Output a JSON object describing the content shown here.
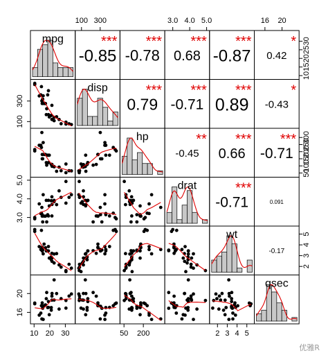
{
  "chart_data": {
    "type": "scatter-matrix",
    "colors": {
      "points": "#000000",
      "smooth": "#e00000",
      "hist_fill": "#c8c8c8",
      "density": "#e00000",
      "stars": "#e00000",
      "text": "#000000"
    },
    "variables": [
      "mpg",
      "disp",
      "hp",
      "drat",
      "wt",
      "qsec"
    ],
    "axes": {
      "top": [
        {
          "var": "disp",
          "ticks": [
            "100",
            "300"
          ],
          "values": [
            100,
            300
          ]
        },
        {
          "var": "drat",
          "ticks": [
            "3.0",
            "4.0",
            "5.0"
          ],
          "values": [
            3.0,
            4.0,
            5.0
          ]
        },
        {
          "var": "qsec",
          "ticks": [
            "16",
            "20"
          ],
          "values": [
            16,
            20
          ]
        }
      ],
      "bottom": [
        {
          "var": "mpg",
          "ticks": [
            "10",
            "20",
            "30"
          ],
          "values": [
            10,
            20,
            30
          ]
        },
        {
          "var": "hp",
          "ticks": [
            "50",
            "200"
          ],
          "values": [
            50,
            200
          ]
        },
        {
          "var": "wt",
          "ticks": [
            "2",
            "3",
            "4",
            "5"
          ],
          "values": [
            2,
            3,
            4,
            5
          ]
        }
      ],
      "left": [
        {
          "var": "disp",
          "ticks": [
            "100",
            "300"
          ],
          "values": [
            100,
            300
          ]
        },
        {
          "var": "drat",
          "ticks": [
            "3.0",
            "4.0",
            "5.0"
          ],
          "values": [
            3.0,
            4.0,
            5.0
          ]
        },
        {
          "var": "qsec",
          "ticks": [
            "16",
            "20"
          ],
          "values": [
            16,
            20
          ]
        }
      ],
      "right": [
        {
          "var": "mpg",
          "ticks": [
            "10",
            "15",
            "20",
            "25",
            "30"
          ],
          "values": [
            10,
            15,
            20,
            25,
            30
          ]
        },
        {
          "var": "hp",
          "ticks": [
            "50",
            "100",
            "150",
            "200",
            "250",
            "300"
          ],
          "values": [
            50,
            100,
            150,
            200,
            250,
            300
          ]
        },
        {
          "var": "wt",
          "ticks": [
            "2",
            "3",
            "4",
            "5"
          ],
          "values": [
            2,
            3,
            4,
            5
          ]
        }
      ]
    },
    "correlations": [
      {
        "row": 0,
        "col": 1,
        "r": "-0.85",
        "stars": "***"
      },
      {
        "row": 0,
        "col": 2,
        "r": "-0.78",
        "stars": "***"
      },
      {
        "row": 0,
        "col": 3,
        "r": "0.68",
        "stars": "***"
      },
      {
        "row": 0,
        "col": 4,
        "r": "-0.87",
        "stars": "***"
      },
      {
        "row": 0,
        "col": 5,
        "r": "0.42",
        "stars": "*"
      },
      {
        "row": 1,
        "col": 2,
        "r": "0.79",
        "stars": "***"
      },
      {
        "row": 1,
        "col": 3,
        "r": "-0.71",
        "stars": "***"
      },
      {
        "row": 1,
        "col": 4,
        "r": "0.89",
        "stars": "***"
      },
      {
        "row": 1,
        "col": 5,
        "r": "-0.43",
        "stars": "*"
      },
      {
        "row": 2,
        "col": 3,
        "r": "-0.45",
        "stars": "**"
      },
      {
        "row": 2,
        "col": 4,
        "r": "0.66",
        "stars": "***"
      },
      {
        "row": 2,
        "col": 5,
        "r": "-0.71",
        "stars": "***"
      },
      {
        "row": 3,
        "col": 4,
        "r": "-0.71",
        "stars": "***"
      },
      {
        "row": 3,
        "col": 5,
        "r": "0.091",
        "stars": ""
      },
      {
        "row": 4,
        "col": 5,
        "r": "-0.17",
        "stars": ""
      }
    ],
    "data": {
      "mpg": [
        21.0,
        21.0,
        22.8,
        21.4,
        18.7,
        18.1,
        14.3,
        24.4,
        22.8,
        19.2,
        17.8,
        16.4,
        17.3,
        15.2,
        10.4,
        10.4,
        14.7,
        32.4,
        30.4,
        33.9,
        21.5,
        15.5,
        15.2,
        13.3,
        19.2,
        27.3,
        26.0,
        30.4,
        15.8,
        19.7,
        15.0,
        21.4
      ],
      "disp": [
        160,
        160,
        108,
        258,
        360,
        225,
        360,
        146.7,
        140.8,
        167.6,
        167.6,
        275.8,
        275.8,
        275.8,
        472,
        460,
        440,
        78.7,
        75.7,
        71.1,
        120.1,
        318,
        304,
        350,
        400,
        79,
        120.3,
        95.1,
        351,
        145,
        301,
        121
      ],
      "hp": [
        110,
        110,
        93,
        110,
        175,
        105,
        245,
        62,
        95,
        123,
        123,
        180,
        180,
        180,
        205,
        215,
        230,
        66,
        52,
        65,
        97,
        150,
        150,
        245,
        175,
        66,
        91,
        113,
        264,
        175,
        335,
        109
      ],
      "drat": [
        3.9,
        3.9,
        3.85,
        3.08,
        3.15,
        2.76,
        3.21,
        3.69,
        3.92,
        3.92,
        3.92,
        3.07,
        3.07,
        3.07,
        2.93,
        3.0,
        3.23,
        4.08,
        4.93,
        4.22,
        3.7,
        2.76,
        3.15,
        3.73,
        3.08,
        4.08,
        4.43,
        3.77,
        4.22,
        3.62,
        3.54,
        4.11
      ],
      "wt": [
        2.62,
        2.875,
        2.32,
        3.215,
        3.44,
        3.46,
        3.57,
        3.19,
        3.15,
        3.44,
        3.44,
        4.07,
        3.73,
        3.78,
        5.25,
        5.424,
        5.345,
        2.2,
        1.615,
        1.835,
        2.465,
        3.52,
        3.435,
        3.84,
        3.845,
        1.935,
        2.14,
        1.513,
        3.17,
        2.77,
        3.57,
        2.78
      ],
      "qsec": [
        16.46,
        17.02,
        18.61,
        19.44,
        17.02,
        20.22,
        15.84,
        20.0,
        22.9,
        18.3,
        18.9,
        17.4,
        17.6,
        18.0,
        17.98,
        17.82,
        17.42,
        19.47,
        18.52,
        19.9,
        20.01,
        16.87,
        17.3,
        15.41,
        17.05,
        18.9,
        16.7,
        16.9,
        14.5,
        15.5,
        14.6,
        18.6
      ]
    }
  },
  "watermark": "优雅R"
}
